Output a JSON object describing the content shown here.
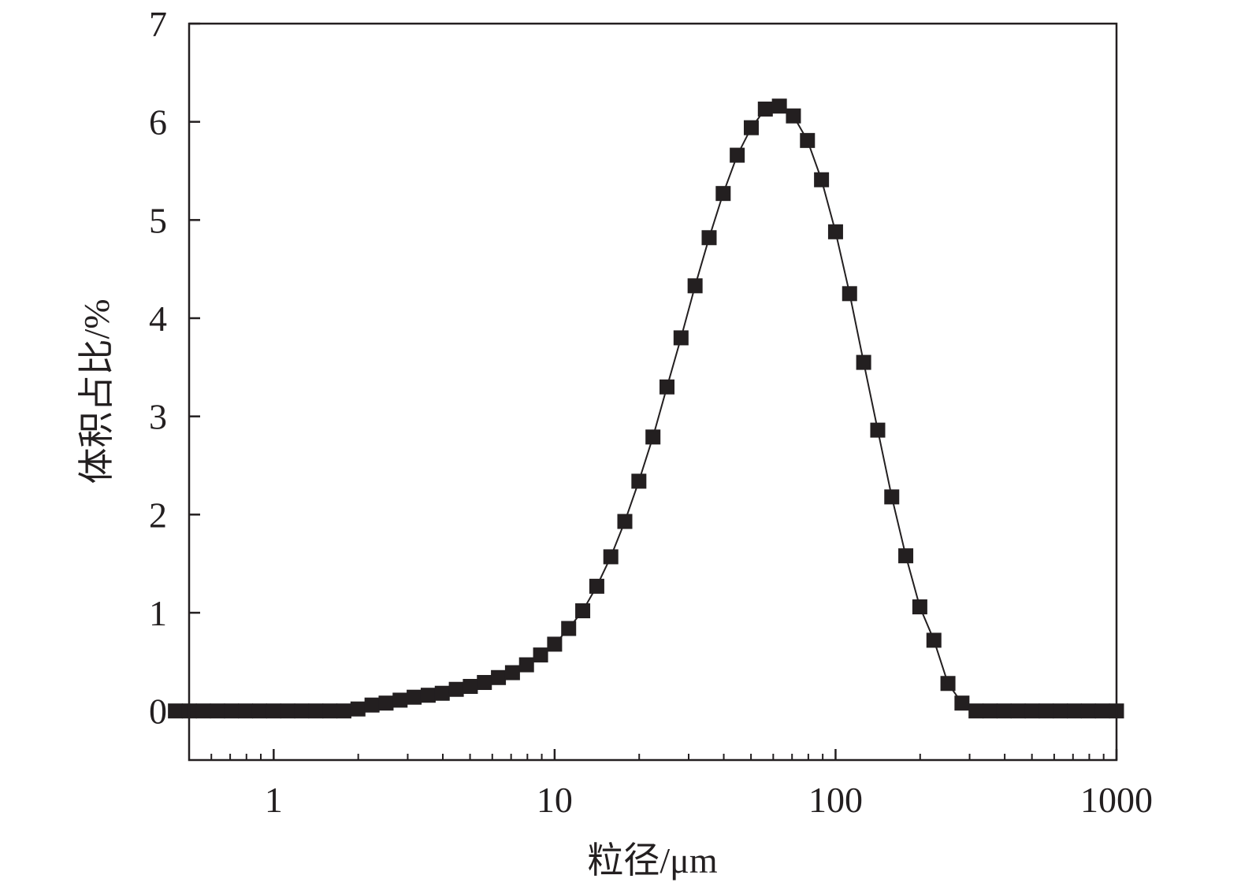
{
  "chart_data": {
    "type": "scatter",
    "title": "",
    "xlabel": "粒径/μm",
    "ylabel": "体积占比/%",
    "xscale": "log",
    "xlim": [
      0.5,
      1000
    ],
    "ylim": [
      -0.5,
      7
    ],
    "xticks": [
      1,
      10,
      100,
      1000
    ],
    "xtick_labels": [
      "1",
      "10",
      "100",
      "1000"
    ],
    "yticks": [
      0,
      1,
      2,
      3,
      4,
      5,
      6,
      7
    ],
    "ytick_labels": [
      "0",
      "1",
      "2",
      "3",
      "4",
      "5",
      "6",
      "7"
    ],
    "grid": false,
    "marker": "square",
    "color": "#231f20",
    "series": [
      {
        "name": "体积占比",
        "x": [
          0.447,
          0.501,
          0.562,
          0.631,
          0.708,
          0.794,
          0.891,
          1,
          1.122,
          1.259,
          1.413,
          1.585,
          1.778,
          1.995,
          2.239,
          2.512,
          2.818,
          3.162,
          3.548,
          3.981,
          4.467,
          5.012,
          5.623,
          6.31,
          7.079,
          7.943,
          8.913,
          10,
          11.22,
          12.59,
          14.13,
          15.85,
          17.78,
          19.95,
          22.39,
          25.12,
          28.18,
          31.62,
          35.48,
          39.81,
          44.67,
          50.12,
          56.23,
          63.1,
          70.79,
          79.43,
          89.13,
          100,
          112.2,
          125.9,
          141.3,
          158.5,
          177.8,
          199.5,
          223.9,
          251.2,
          281.8,
          316.2,
          354.8,
          398.1,
          446.7,
          501.2,
          562.3,
          631,
          707.9,
          794.3,
          891.3,
          1000
        ],
        "y": [
          0,
          0,
          0,
          0,
          0,
          0,
          0,
          0,
          0,
          0,
          0,
          0,
          0,
          0.02,
          0.06,
          0.08,
          0.11,
          0.14,
          0.16,
          0.18,
          0.22,
          0.25,
          0.29,
          0.34,
          0.39,
          0.47,
          0.57,
          0.68,
          0.84,
          1.02,
          1.27,
          1.57,
          1.93,
          2.34,
          2.79,
          3.3,
          3.8,
          4.33,
          4.82,
          5.27,
          5.66,
          5.94,
          6.13,
          6.16,
          6.06,
          5.81,
          5.41,
          4.88,
          4.25,
          3.55,
          2.86,
          2.18,
          1.58,
          1.06,
          0.72,
          0.28,
          0.08,
          0,
          0,
          0,
          0,
          0,
          0,
          0,
          0,
          0,
          0,
          0
        ]
      }
    ]
  }
}
